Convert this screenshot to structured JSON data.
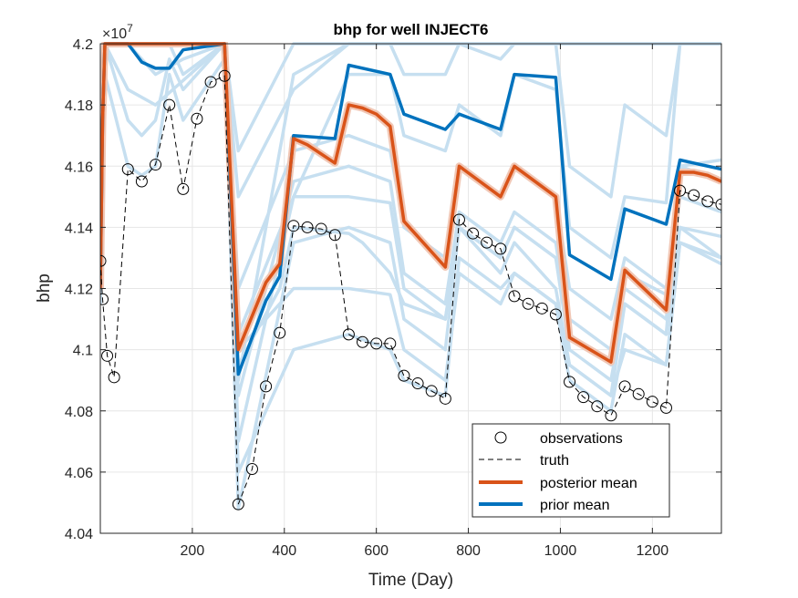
{
  "chart_data": {
    "type": "line",
    "title": "bhp for well INJECT6",
    "xlabel": "Time (Day)",
    "ylabel": "bhp",
    "exponent_label": "×10",
    "exponent_power": "7",
    "xlim": [
      0,
      1350
    ],
    "ylim": [
      4.04,
      4.2
    ],
    "xticks": [
      200,
      400,
      600,
      800,
      1000,
      1200
    ],
    "xtick_labels": [
      "200",
      "400",
      "600",
      "800",
      "1000",
      "1200"
    ],
    "yticks": [
      4.04,
      4.06,
      4.08,
      4.1,
      4.12,
      4.14,
      4.16,
      4.18,
      4.2
    ],
    "ytick_labels": [
      "4.04",
      "4.06",
      "4.08",
      "4.1",
      "4.12",
      "4.14",
      "4.16",
      "4.18",
      "4.2"
    ],
    "grid": true,
    "legend_position": "bottom-right",
    "legend": [
      {
        "label": "observations",
        "style": "circle"
      },
      {
        "label": "truth",
        "style": "dashed"
      },
      {
        "label": "posterior mean",
        "style": "line",
        "color": "#d95319"
      },
      {
        "label": "prior mean",
        "style": "line",
        "color": "#0072bd"
      }
    ],
    "colors": {
      "ensemble": "#c6dff0",
      "posterior_band": "#f1c7b5",
      "posterior": "#d95319",
      "prior": "#0072bd",
      "truth": "#000000",
      "axes": "#262626",
      "grid": "#e6e6e6"
    },
    "observations": {
      "x": [
        0,
        5,
        15,
        30,
        60,
        90,
        120,
        150,
        180,
        210,
        240,
        270,
        300,
        330,
        360,
        390,
        420,
        450,
        480,
        510,
        540,
        570,
        600,
        630,
        660,
        690,
        720,
        750,
        780,
        810,
        840,
        870,
        900,
        930,
        960,
        990,
        1020,
        1050,
        1080,
        1110,
        1140,
        1170,
        1200,
        1230,
        1260,
        1290,
        1320,
        1350
      ],
      "y": [
        4.129,
        4.1165,
        4.098,
        4.091,
        4.159,
        4.155,
        4.1605,
        4.18,
        4.1525,
        4.1755,
        4.1875,
        4.1895,
        4.0495,
        4.061,
        4.088,
        4.1055,
        4.1405,
        4.14,
        4.1395,
        4.1375,
        4.105,
        4.1025,
        4.102,
        4.102,
        4.0915,
        4.089,
        4.0865,
        4.084,
        4.1425,
        4.138,
        4.135,
        4.133,
        4.1175,
        4.115,
        4.1135,
        4.1115,
        4.0895,
        4.0845,
        4.0815,
        4.0785,
        4.088,
        4.0855,
        4.083,
        4.081,
        4.152,
        4.1505,
        4.1485,
        4.1475
      ]
    },
    "series": [
      {
        "name": "truth",
        "x": [
          0,
          5,
          15,
          30,
          60,
          90,
          120,
          150,
          180,
          210,
          240,
          270,
          300,
          330,
          360,
          390,
          420,
          450,
          480,
          510,
          540,
          570,
          600,
          630,
          660,
          690,
          720,
          750,
          780,
          810,
          840,
          870,
          900,
          930,
          960,
          990,
          1020,
          1050,
          1080,
          1110,
          1140,
          1170,
          1200,
          1230,
          1260,
          1290,
          1320,
          1350
        ],
        "y": [
          4.129,
          4.1165,
          4.098,
          4.091,
          4.159,
          4.155,
          4.1605,
          4.18,
          4.1525,
          4.1755,
          4.1875,
          4.1895,
          4.0495,
          4.061,
          4.088,
          4.1055,
          4.1405,
          4.14,
          4.1395,
          4.1375,
          4.105,
          4.1025,
          4.102,
          4.102,
          4.0915,
          4.089,
          4.0865,
          4.084,
          4.1425,
          4.138,
          4.135,
          4.133,
          4.1175,
          4.115,
          4.1135,
          4.1115,
          4.0895,
          4.0845,
          4.0815,
          4.0785,
          4.088,
          4.0855,
          4.083,
          4.081,
          4.152,
          4.1505,
          4.1485,
          4.1475
        ]
      },
      {
        "name": "posterior mean",
        "x": [
          0,
          5,
          10,
          270,
          300,
          360,
          390,
          420,
          450,
          480,
          510,
          540,
          570,
          600,
          630,
          660,
          750,
          780,
          870,
          900,
          990,
          1020,
          1110,
          1140,
          1230,
          1260,
          1290,
          1320,
          1350
        ],
        "y": [
          4.12,
          4.175,
          4.2,
          4.2,
          4.1,
          4.122,
          4.128,
          4.169,
          4.167,
          4.164,
          4.161,
          4.18,
          4.179,
          4.177,
          4.173,
          4.142,
          4.127,
          4.16,
          4.15,
          4.16,
          4.15,
          4.104,
          4.096,
          4.126,
          4.113,
          4.158,
          4.158,
          4.157,
          4.155
        ]
      },
      {
        "name": "prior mean",
        "x": [
          0,
          5,
          10,
          30,
          60,
          90,
          120,
          150,
          180,
          270,
          300,
          360,
          390,
          420,
          510,
          540,
          630,
          660,
          750,
          780,
          870,
          900,
          990,
          1020,
          1110,
          1140,
          1230,
          1260,
          1350
        ],
        "y": [
          4.12,
          4.175,
          4.2,
          4.2,
          4.2,
          4.194,
          4.192,
          4.192,
          4.198,
          4.2,
          4.092,
          4.116,
          4.124,
          4.17,
          4.169,
          4.193,
          4.19,
          4.177,
          4.172,
          4.177,
          4.172,
          4.19,
          4.189,
          4.131,
          4.123,
          4.146,
          4.141,
          4.162,
          4.159
        ]
      }
    ],
    "ensemble": [
      {
        "x": [
          0,
          10,
          60,
          90,
          120,
          150,
          180,
          270,
          300,
          420,
          540,
          630,
          660,
          750,
          780,
          870,
          900,
          990,
          1020,
          1110,
          1140,
          1230,
          1260,
          1350
        ],
        "y": [
          4.13,
          4.2,
          4.2,
          4.2,
          4.2,
          4.2,
          4.2,
          4.2,
          4.105,
          4.15,
          4.19,
          4.19,
          4.17,
          4.165,
          4.18,
          4.17,
          4.19,
          4.185,
          4.14,
          4.13,
          4.15,
          4.148,
          4.2,
          4.2
        ]
      },
      {
        "x": [
          0,
          10,
          60,
          90,
          120,
          150,
          180,
          270,
          300,
          420,
          540,
          630,
          660,
          750,
          780,
          870,
          900,
          990,
          1020,
          1110,
          1140,
          1230,
          1260,
          1350
        ],
        "y": [
          4.125,
          4.2,
          4.2,
          4.2,
          4.2,
          4.2,
          4.19,
          4.2,
          4.15,
          4.185,
          4.2,
          4.2,
          4.2,
          4.2,
          4.2,
          4.2,
          4.2,
          4.2,
          4.2,
          4.2,
          4.2,
          4.2,
          4.2,
          4.2
        ]
      },
      {
        "x": [
          0,
          10,
          60,
          90,
          120,
          150,
          180,
          270,
          300,
          390,
          420,
          540,
          570,
          600,
          630,
          660,
          750,
          780,
          870,
          900,
          990,
          1020,
          1110,
          1140,
          1230,
          1260,
          1350
        ],
        "y": [
          4.118,
          4.19,
          4.16,
          4.157,
          4.16,
          4.19,
          4.175,
          4.195,
          4.095,
          4.12,
          4.14,
          4.138,
          4.135,
          4.13,
          4.125,
          4.115,
          4.11,
          4.14,
          4.125,
          4.135,
          4.12,
          4.095,
          4.085,
          4.115,
          4.105,
          4.16,
          4.155
        ]
      },
      {
        "x": [
          0,
          10,
          60,
          90,
          120,
          150,
          180,
          270,
          300,
          420,
          540,
          630,
          660,
          750,
          780,
          870,
          900,
          990,
          1020,
          1110,
          1140,
          1230,
          1260,
          1350
        ],
        "y": [
          4.122,
          4.2,
          4.175,
          4.17,
          4.175,
          4.195,
          4.185,
          4.2,
          4.07,
          4.15,
          4.15,
          4.148,
          4.12,
          4.11,
          4.14,
          4.13,
          4.14,
          4.13,
          4.11,
          4.1,
          4.125,
          4.118,
          4.14,
          4.13
        ]
      },
      {
        "x": [
          0,
          10,
          90,
          180,
          270,
          300,
          420,
          540,
          630,
          660,
          750,
          780,
          870,
          900,
          990,
          1020,
          1110,
          1140,
          1230,
          1260,
          1350
        ],
        "y": [
          4.13,
          4.2,
          4.2,
          4.2,
          4.2,
          4.12,
          4.165,
          4.17,
          4.165,
          4.14,
          4.13,
          4.16,
          4.15,
          4.16,
          4.15,
          4.12,
          4.11,
          4.13,
          4.12,
          4.16,
          4.162
        ]
      },
      {
        "x": [
          0,
          10,
          60,
          120,
          180,
          270,
          300,
          420,
          540,
          630,
          660,
          750,
          780,
          870,
          900,
          990,
          1020,
          1110,
          1140,
          1230,
          1260,
          1350
        ],
        "y": [
          4.12,
          4.2,
          4.2,
          4.19,
          4.195,
          4.2,
          4.06,
          4.1,
          4.105,
          4.1,
          4.09,
          4.085,
          4.13,
          4.12,
          4.125,
          4.115,
          4.095,
          4.085,
          4.1,
          4.095,
          4.135,
          4.13
        ]
      },
      {
        "x": [
          0,
          10,
          60,
          120,
          180,
          270,
          300,
          420,
          540,
          630,
          660,
          750,
          780,
          870,
          900,
          990,
          1020,
          1110,
          1140,
          1230,
          1260,
          1350
        ],
        "y": [
          4.125,
          4.2,
          4.2,
          4.2,
          4.2,
          4.2,
          4.165,
          4.2,
          4.2,
          4.2,
          4.2,
          4.2,
          4.2,
          4.2,
          4.2,
          4.2,
          4.2,
          4.2,
          4.2,
          4.2,
          4.2,
          4.2
        ]
      },
      {
        "x": [
          0,
          10,
          60,
          120,
          180,
          270,
          300,
          420,
          540,
          630,
          660,
          750,
          780,
          870,
          900,
          990,
          1020,
          1110,
          1140,
          1230,
          1260,
          1350
        ],
        "y": [
          4.12,
          4.2,
          4.185,
          4.18,
          4.188,
          4.2,
          4.085,
          4.155,
          4.16,
          4.155,
          4.125,
          4.115,
          4.145,
          4.135,
          4.145,
          4.135,
          4.105,
          4.095,
          4.12,
          4.11,
          4.15,
          4.145
        ]
      },
      {
        "x": [
          0,
          10,
          60,
          120,
          180,
          270,
          300,
          420,
          540,
          630,
          660,
          750,
          780,
          870,
          900,
          990,
          1020,
          1110,
          1140,
          1230,
          1260,
          1350
        ],
        "y": [
          4.118,
          4.2,
          4.2,
          4.2,
          4.2,
          4.2,
          4.048,
          4.135,
          4.14,
          4.135,
          4.11,
          4.1,
          4.14,
          4.13,
          4.14,
          4.13,
          4.1,
          4.09,
          4.115,
          4.105,
          4.14,
          4.137
        ]
      },
      {
        "x": [
          0,
          10,
          60,
          120,
          180,
          270,
          300,
          420,
          540,
          630,
          660,
          750,
          780,
          870,
          900,
          990,
          1020,
          1110,
          1140,
          1230,
          1260,
          1350
        ],
        "y": [
          4.12,
          4.2,
          4.2,
          4.2,
          4.2,
          4.2,
          4.09,
          4.19,
          4.2,
          4.2,
          4.19,
          4.19,
          4.2,
          4.195,
          4.2,
          4.2,
          4.16,
          4.15,
          4.18,
          4.17,
          4.2,
          4.2
        ]
      },
      {
        "x": [
          0,
          10,
          60,
          120,
          180,
          270,
          300,
          420,
          540,
          630,
          660,
          750,
          780,
          870,
          900,
          990,
          1020,
          1110,
          1140,
          1230,
          1260,
          1350
        ],
        "y": [
          4.115,
          4.2,
          4.2,
          4.2,
          4.2,
          4.2,
          4.1,
          4.12,
          4.12,
          4.118,
          4.1,
          4.09,
          4.125,
          4.115,
          4.125,
          4.115,
          4.09,
          4.08,
          4.105,
          4.095,
          4.135,
          4.128
        ]
      }
    ]
  }
}
